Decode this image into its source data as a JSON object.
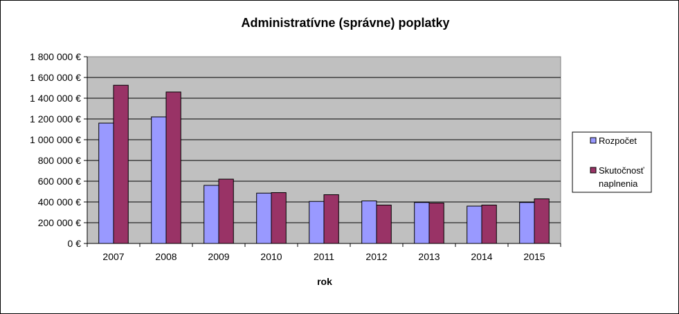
{
  "chart_data": {
    "type": "bar",
    "title": "Administratívne (správne) poplatky",
    "xlabel": "rok",
    "ylabel": "",
    "categories": [
      "2007",
      "2008",
      "2009",
      "2010",
      "2011",
      "2012",
      "2013",
      "2014",
      "2015"
    ],
    "series": [
      {
        "name": "Rozpočet",
        "color": "#9999ff",
        "values": [
          1160000,
          1220000,
          560000,
          485000,
          405000,
          410000,
          395000,
          360000,
          395000
        ]
      },
      {
        "name": "Skutočnosť naplnenia",
        "color": "#993366",
        "values": [
          1525000,
          1460000,
          620000,
          490000,
          470000,
          370000,
          390000,
          370000,
          430000
        ]
      }
    ],
    "ylim": [
      0,
      1800000
    ],
    "yticks": [
      0,
      200000,
      400000,
      600000,
      800000,
      1000000,
      1200000,
      1400000,
      1600000,
      1800000
    ],
    "ytick_labels": [
      "0 €",
      "200 000 €",
      "400 000 €",
      "600 000 €",
      "800 000 €",
      "1 000 000 €",
      "1 200 000 €",
      "1 400 000 €",
      "1 600 000 €",
      "1 800 000 €"
    ],
    "grid": true,
    "plot_background": "#c0c0c0",
    "legend": {
      "position": "right",
      "entries": [
        "Rozpočet",
        "Skutočnosť",
        "naplnenia"
      ]
    }
  }
}
